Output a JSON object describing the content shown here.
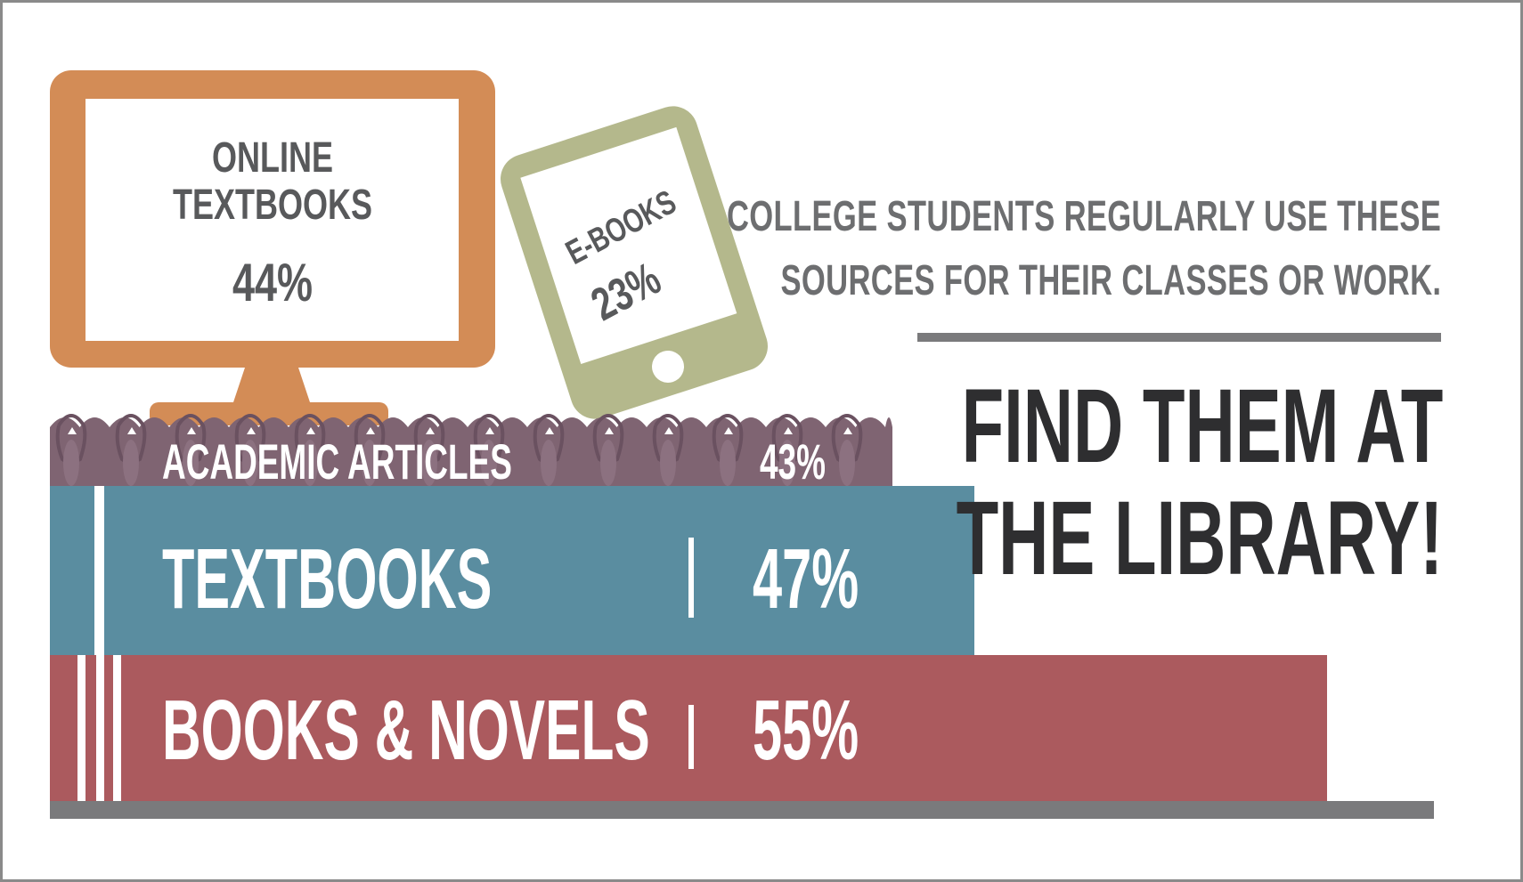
{
  "colors": {
    "monitor": "#d38c56",
    "ereader": "#b4b88c",
    "articles_book": "#7f6472",
    "textbooks_book": "#5a8da0",
    "novels_book": "#ab5a5e",
    "text_dark": "#2e2e30",
    "text_gray": "#6d6e70"
  },
  "monitor": {
    "label_line1": "ONLINE",
    "label_line2": "TEXTBOOKS",
    "percent": "44%",
    "icon": "desktop-monitor-icon"
  },
  "ereader": {
    "label": "E-BOOKS",
    "percent": "23%",
    "icon": "tablet-ereader-icon"
  },
  "books": [
    {
      "label": "ACADEMIC ARTICLES",
      "percent": "43%",
      "icon": "spiral-notebook-icon"
    },
    {
      "label": "TEXTBOOKS",
      "percent": "47%",
      "icon": "book-spine-icon"
    },
    {
      "label": "BOOKS & NOVELS",
      "percent": "55%",
      "icon": "book-spine-icon"
    }
  ],
  "stats_intro": {
    "line1": "COLLEGE STUDENTS REGULARLY USE THESE",
    "line2": "SOURCES FOR THEIR CLASSES OR WORK."
  },
  "headline": {
    "line1": "FIND THEM AT",
    "line2": "THE LIBRARY!"
  }
}
